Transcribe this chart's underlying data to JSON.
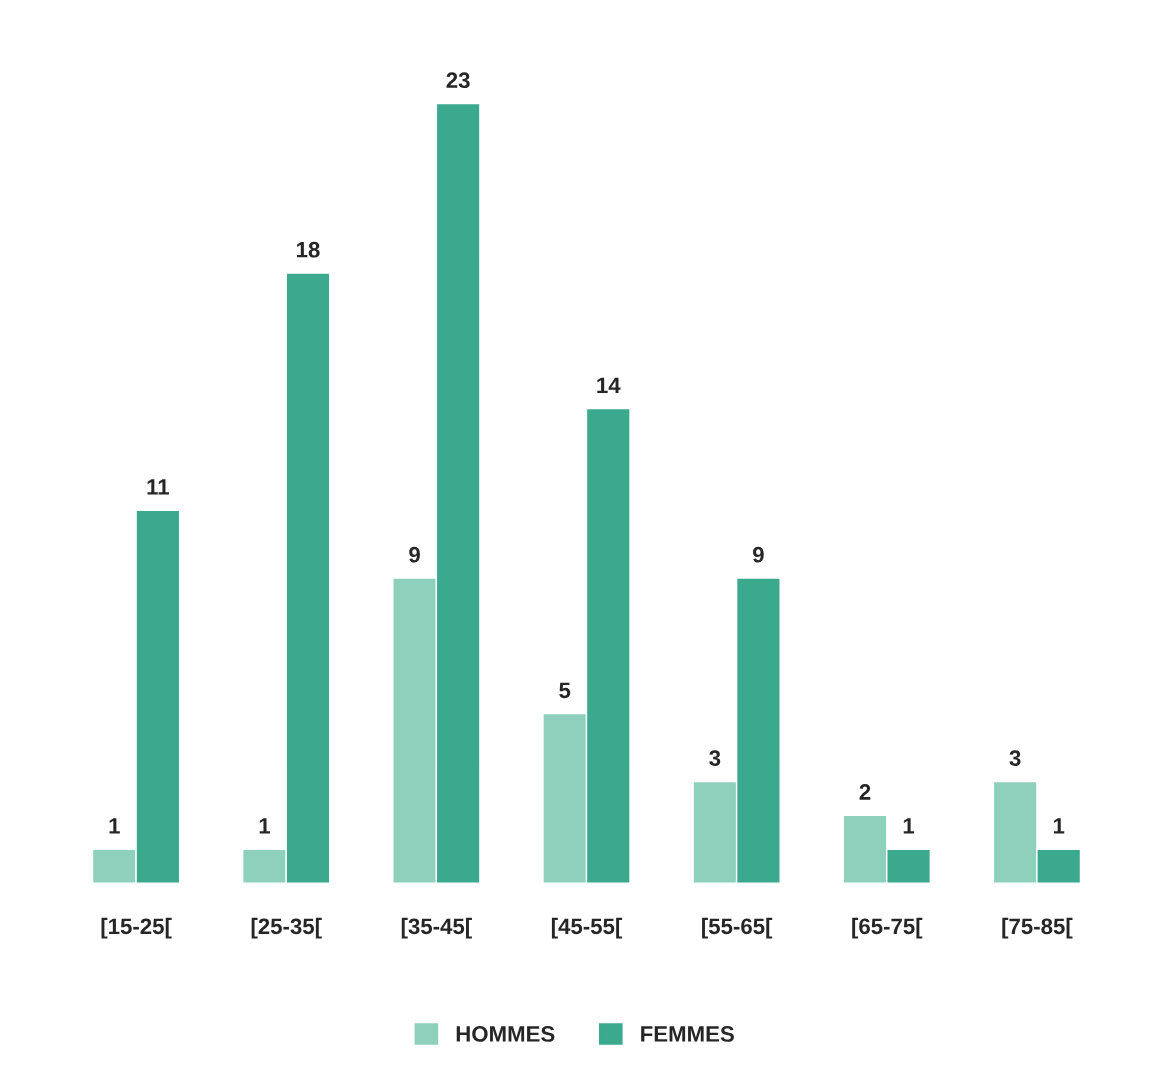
{
  "chart_data": {
    "type": "bar",
    "categories": [
      "[15-25[",
      "[25-35[",
      "[35-45[",
      "[45-55[",
      "[55-65[",
      "[65-75[",
      "[75-85["
    ],
    "series": [
      {
        "name": "HOMMES",
        "color": "#8fd0bd",
        "values": [
          1,
          1,
          9,
          5,
          3,
          2,
          3
        ]
      },
      {
        "name": "FEMMES",
        "color": "#3aa98e",
        "values": [
          11,
          18,
          23,
          14,
          9,
          1,
          1
        ]
      }
    ],
    "data_labels": true,
    "legend": "bottom",
    "grid": false
  }
}
